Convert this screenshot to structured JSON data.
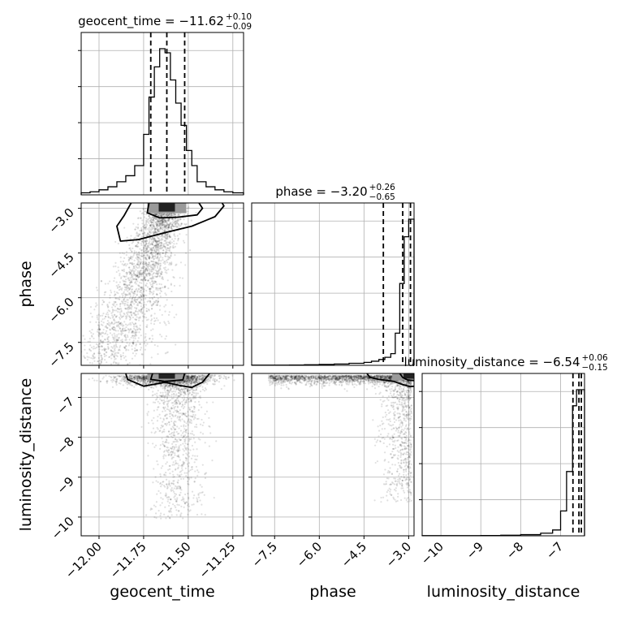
{
  "chart_data": {
    "type": "corner",
    "parameters": [
      {
        "name": "geocent_time",
        "axis_label": "geocent_time",
        "title_prefix": "geocent_time = ",
        "median": "−11.62",
        "plus": "+0.10",
        "minus": "−0.09",
        "quantiles": [
          -11.71,
          -11.62,
          -11.52
        ],
        "range": [
          -12.1,
          -11.19
        ],
        "ticks": [
          -12.0,
          -11.75,
          -11.5,
          -11.25
        ],
        "tick_labels": [
          "−12.00",
          "−11.75",
          "−11.50",
          "−11.25"
        ],
        "hist_edges": [
          -12.1,
          -12.05,
          -12.0,
          -11.95,
          -11.9,
          -11.85,
          -11.8,
          -11.75,
          -11.72,
          -11.69,
          -11.66,
          -11.63,
          -11.6,
          -11.57,
          -11.54,
          -11.51,
          -11.48,
          -11.45,
          -11.4,
          -11.35,
          -11.3,
          -11.25,
          -11.19
        ],
        "hist_counts": [
          2,
          3,
          5,
          8,
          13,
          19,
          29,
          60,
          97,
          127,
          145,
          141,
          114,
          91,
          69,
          44,
          29,
          13,
          8,
          5,
          3,
          2
        ]
      },
      {
        "name": "phase",
        "axis_label": "phase",
        "title_prefix": "phase = ",
        "median": "−3.20",
        "plus": "+0.26",
        "minus": "−0.65",
        "quantiles": [
          -3.85,
          -3.2,
          -2.94
        ],
        "range": [
          -8.27,
          -2.82
        ],
        "ticks": [
          -7.5,
          -6.0,
          -4.5,
          -3.0
        ],
        "tick_labels": [
          "−7.5",
          "−6.0",
          "−4.5",
          "−3.0"
        ],
        "hist_edges": [
          -8.27,
          -7.0,
          -6.5,
          -6.0,
          -5.5,
          -5.0,
          -4.5,
          -4.25,
          -4.0,
          -3.8,
          -3.6,
          -3.45,
          -3.3,
          -3.15,
          -3.0,
          -2.82
        ],
        "hist_counts": [
          1,
          2,
          4,
          6,
          9,
          14,
          20,
          28,
          40,
          55,
          80,
          220,
          560,
          880,
          1000
        ]
      },
      {
        "name": "luminosity_distance",
        "axis_label": "luminosity_distance",
        "title_prefix": "luminosity_distance = ",
        "median": "−6.54",
        "plus": "+0.06",
        "minus": "−0.15",
        "quantiles": [
          -6.69,
          -6.54,
          -6.48
        ],
        "range": [
          -10.47,
          -6.4
        ],
        "ticks": [
          -10,
          -9,
          -8,
          -7
        ],
        "tick_labels": [
          "−10",
          "−9",
          "−8",
          "−7"
        ],
        "hist_edges": [
          -10.47,
          -9.0,
          -8.5,
          -8.0,
          -7.5,
          -7.2,
          -7.0,
          -6.85,
          -6.7,
          -6.6,
          -6.5,
          -6.4
        ],
        "hist_counts": [
          1,
          2,
          4,
          8,
          18,
          40,
          170,
          440,
          890,
          1000,
          1000
        ]
      }
    ],
    "pairs": [
      {
        "x": "geocent_time",
        "y": "phase",
        "peak": [
          -11.62,
          -3.0
        ],
        "contour_levels": [
          [
            [
              -11.72,
              -2.82
            ],
            [
              -11.73,
              -3.15
            ],
            [
              -11.66,
              -3.32
            ],
            [
              -11.56,
              -3.3
            ],
            [
              -11.45,
              -3.22
            ],
            [
              -11.42,
              -3.0
            ],
            [
              -11.44,
              -2.82
            ]
          ],
          [
            [
              -11.82,
              -2.82
            ],
            [
              -11.86,
              -3.25
            ],
            [
              -11.9,
              -3.6
            ],
            [
              -11.88,
              -4.1
            ],
            [
              -11.78,
              -4.05
            ],
            [
              -11.62,
              -3.8
            ],
            [
              -11.48,
              -3.6
            ],
            [
              -11.35,
              -3.28
            ],
            [
              -11.3,
              -2.92
            ],
            [
              -11.31,
              -2.82
            ]
          ]
        ]
      },
      {
        "x": "geocent_time",
        "y": "luminosity_distance",
        "peak": [
          -11.62,
          -6.45
        ],
        "contour_levels": [
          [
            [
              -11.7,
              -6.4
            ],
            [
              -11.71,
              -6.55
            ],
            [
              -11.63,
              -6.6
            ],
            [
              -11.53,
              -6.56
            ],
            [
              -11.52,
              -6.4
            ]
          ],
          [
            [
              -11.85,
              -6.4
            ],
            [
              -11.84,
              -6.55
            ],
            [
              -11.75,
              -6.72
            ],
            [
              -11.63,
              -6.62
            ],
            [
              -11.55,
              -6.7
            ],
            [
              -11.48,
              -6.75
            ],
            [
              -11.42,
              -6.62
            ],
            [
              -11.38,
              -6.4
            ]
          ]
        ]
      },
      {
        "x": "phase",
        "y": "luminosity_distance",
        "peak": [
          -2.9,
          -6.45
        ],
        "contour_levels": [
          [
            [
              -3.3,
              -6.4
            ],
            [
              -3.2,
              -6.5
            ],
            [
              -3.05,
              -6.56
            ],
            [
              -2.82,
              -6.58
            ]
          ],
          [
            [
              -4.4,
              -6.4
            ],
            [
              -4.3,
              -6.5
            ],
            [
              -4.0,
              -6.55
            ],
            [
              -3.5,
              -6.6
            ],
            [
              -3.2,
              -6.68
            ],
            [
              -2.95,
              -6.73
            ],
            [
              -2.82,
              -6.72
            ]
          ]
        ]
      }
    ],
    "grid": true,
    "colors": {
      "line": "#000000",
      "grid": "#b0b0b0",
      "points": "#000000"
    }
  }
}
